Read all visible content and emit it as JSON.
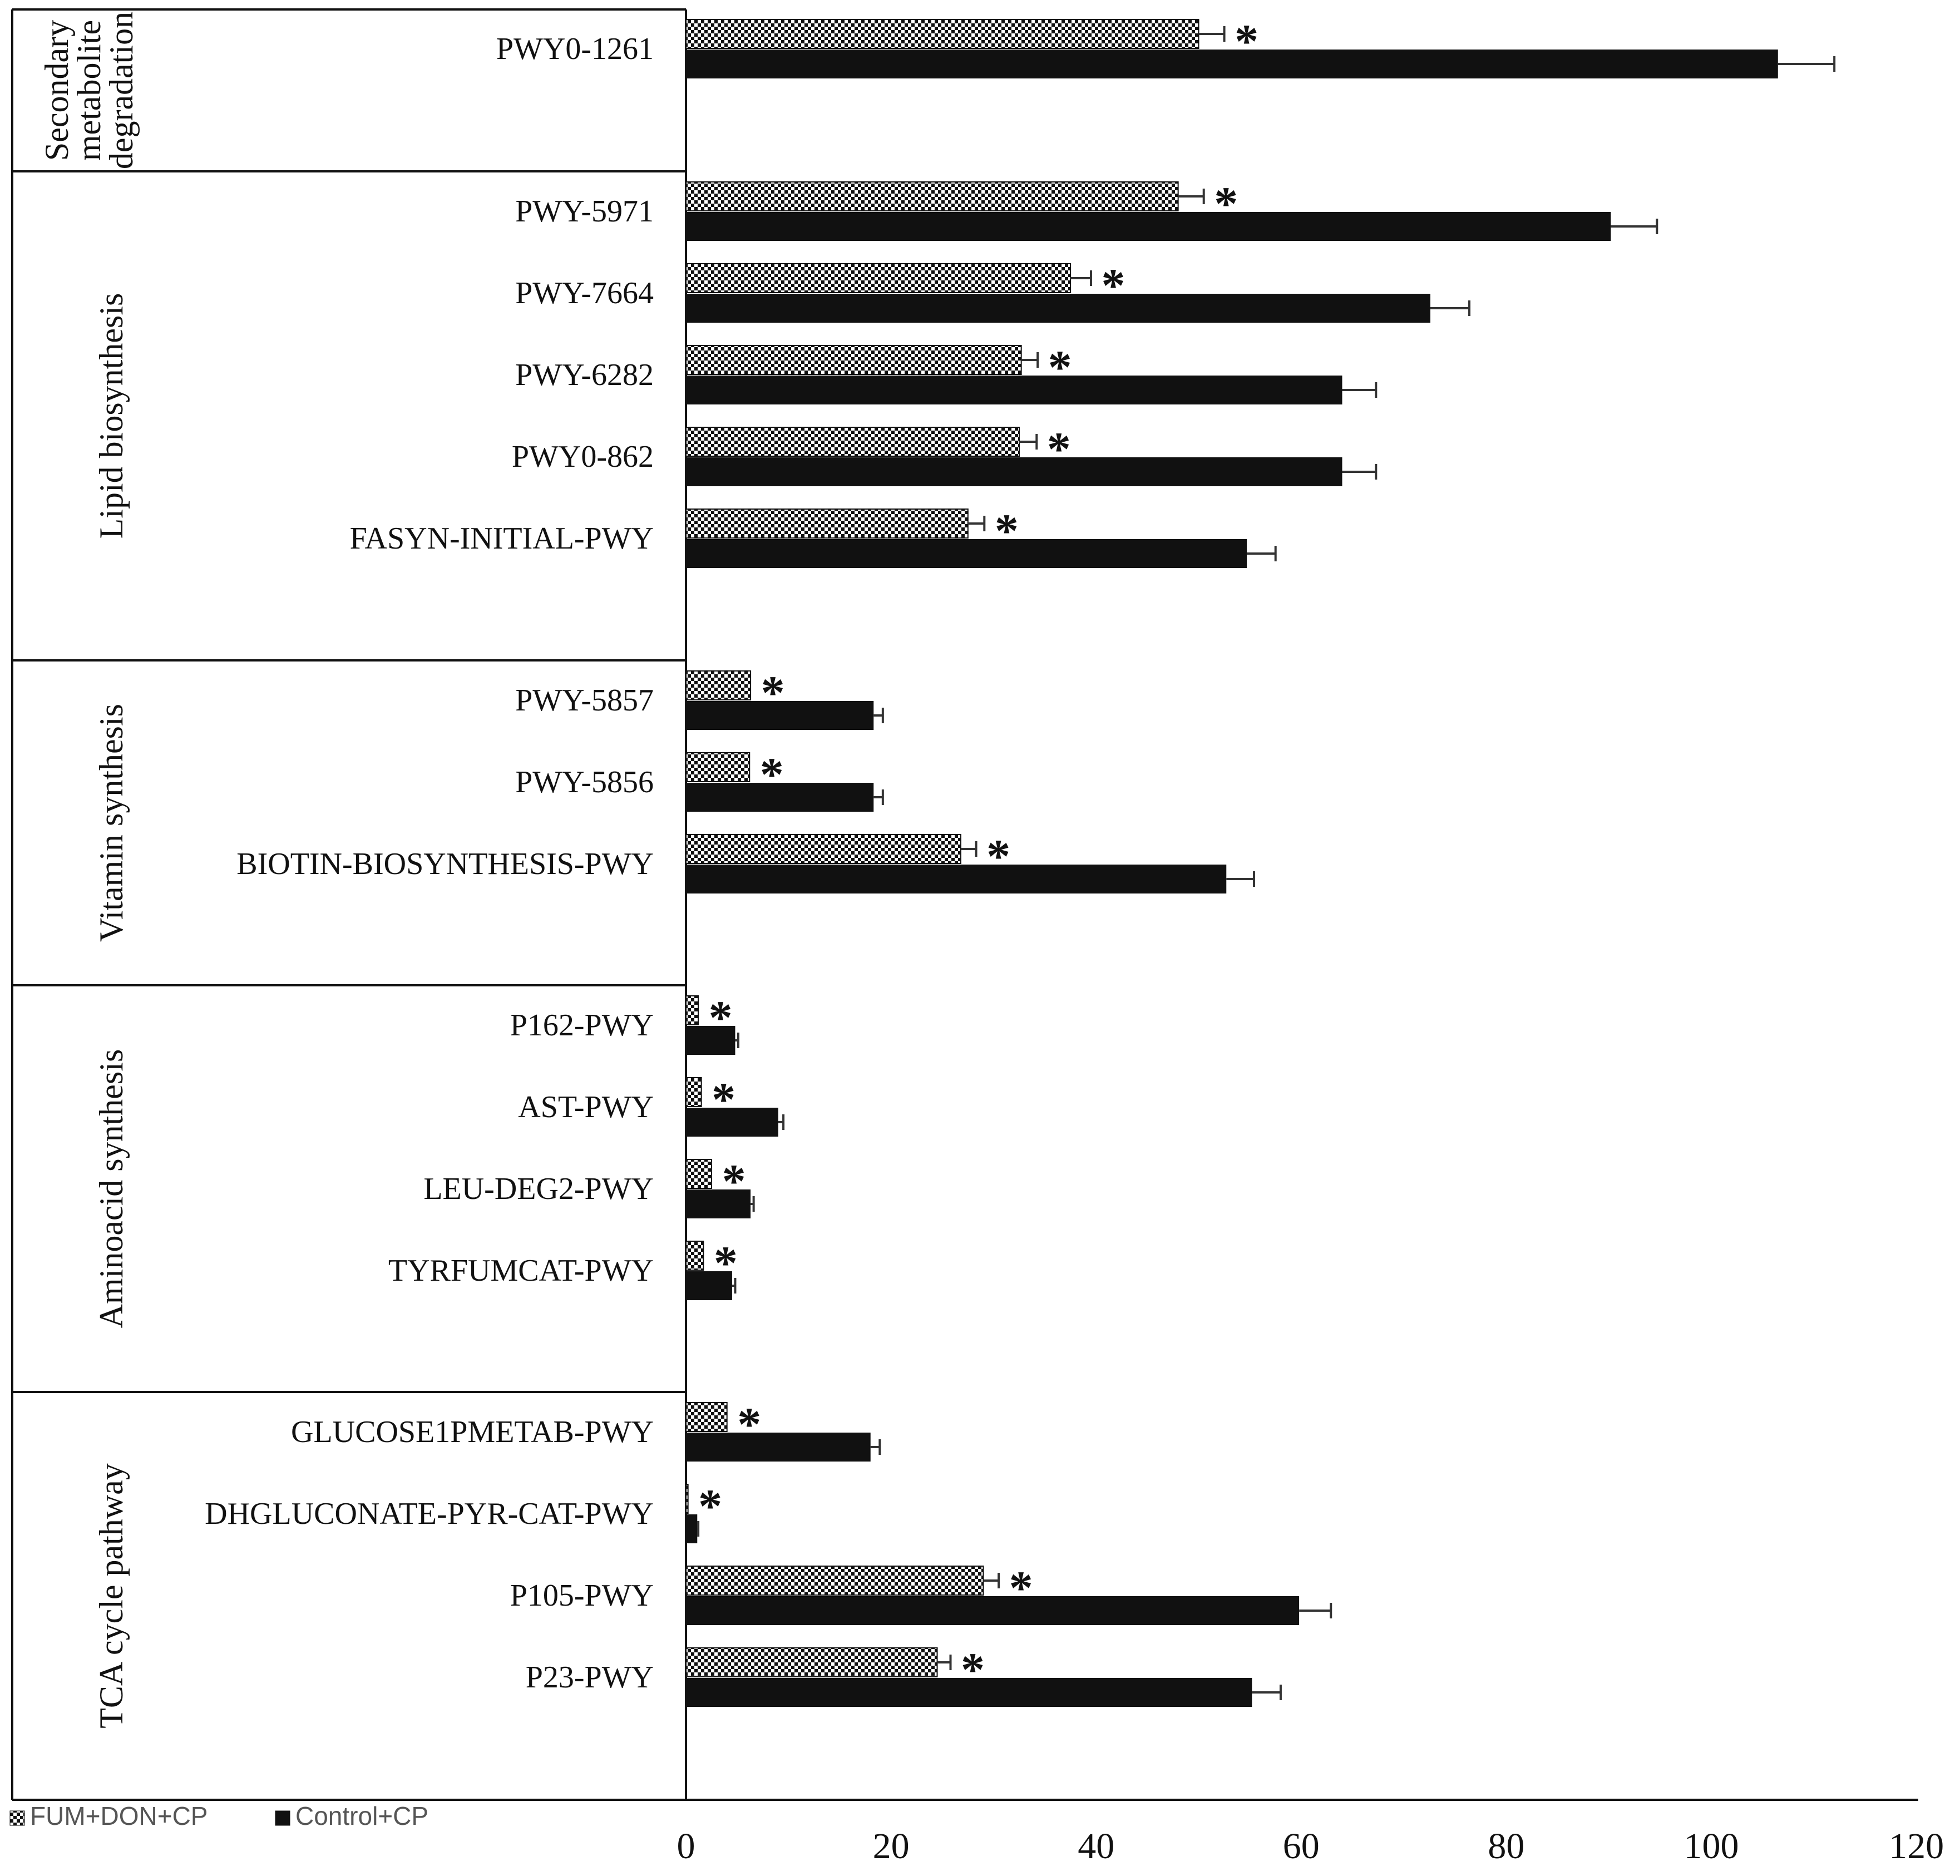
{
  "chart_data": {
    "type": "bar",
    "orientation": "horizontal",
    "title": "",
    "xlabel": "",
    "ylabel": "",
    "xlim": [
      0,
      120
    ],
    "x_ticks": [
      "0",
      "20",
      "40",
      "60",
      "80",
      "100",
      "120"
    ],
    "grid": false,
    "legend_position": "bottom-left",
    "series": [
      {
        "name": "FUM+DON+CP",
        "pattern": "checkered",
        "color": "#111111"
      },
      {
        "name": "Control+CP",
        "pattern": "solid",
        "color": "#111111"
      }
    ],
    "significance_marker": "*",
    "groups": [
      {
        "label_lines": [
          "Secondary",
          "metabolite",
          "degradation"
        ],
        "pathways": [
          {
            "name": "PWY0-1261",
            "FUM+DON+CP": 50,
            "FUM+DON+CP_err": 2.5,
            "Control+CP": 106.5,
            "Control+CP_err": 5.5,
            "significant": true
          }
        ]
      },
      {
        "label_lines": [
          "Lipid biosynthesis"
        ],
        "pathways": [
          {
            "name": "PWY-5971",
            "FUM+DON+CP": 48,
            "FUM+DON+CP_err": 2.5,
            "Control+CP": 90.2,
            "Control+CP_err": 4.5,
            "significant": true
          },
          {
            "name": "PWY-7664",
            "FUM+DON+CP": 37.5,
            "FUM+DON+CP_err": 2,
            "Control+CP": 72.6,
            "Control+CP_err": 3.8,
            "significant": true
          },
          {
            "name": "PWY-6282",
            "FUM+DON+CP": 32.7,
            "FUM+DON+CP_err": 1.6,
            "Control+CP": 64,
            "Control+CP_err": 3.3,
            "significant": true
          },
          {
            "name": "PWY0-862",
            "FUM+DON+CP": 32.5,
            "FUM+DON+CP_err": 1.7,
            "Control+CP": 64,
            "Control+CP_err": 3.3,
            "significant": true
          },
          {
            "name": "FASYN-INITIAL-PWY",
            "FUM+DON+CP": 27.5,
            "FUM+DON+CP_err": 1.6,
            "Control+CP": 54.7,
            "Control+CP_err": 2.8,
            "significant": true
          }
        ]
      },
      {
        "label_lines": [
          "Vitamin synthesis"
        ],
        "pathways": [
          {
            "name": "PWY-5857",
            "FUM+DON+CP": 6.3,
            "FUM+DON+CP_err": 0,
            "Control+CP": 18.3,
            "Control+CP_err": 0.9,
            "significant": true
          },
          {
            "name": "PWY-5856",
            "FUM+DON+CP": 6.2,
            "FUM+DON+CP_err": 0,
            "Control+CP": 18.3,
            "Control+CP_err": 0.9,
            "significant": true
          },
          {
            "name": "BIOTIN-BIOSYNTHESIS-PWY",
            "FUM+DON+CP": 26.8,
            "FUM+DON+CP_err": 1.5,
            "Control+CP": 52.7,
            "Control+CP_err": 2.7,
            "significant": true
          }
        ]
      },
      {
        "label_lines": [
          "Aminoacid synthesis"
        ],
        "pathways": [
          {
            "name": "P162-PWY",
            "FUM+DON+CP": 1.2,
            "FUM+DON+CP_err": 0,
            "Control+CP": 4.8,
            "Control+CP_err": 0.3,
            "significant": true
          },
          {
            "name": "AST-PWY",
            "FUM+DON+CP": 1.5,
            "FUM+DON+CP_err": 0,
            "Control+CP": 9,
            "Control+CP_err": 0.5,
            "significant": true
          },
          {
            "name": "LEU-DEG2-PWY",
            "FUM+DON+CP": 2.5,
            "FUM+DON+CP_err": 0,
            "Control+CP": 6.3,
            "Control+CP_err": 0.3,
            "significant": true
          },
          {
            "name": "TYRFUMCAT-PWY",
            "FUM+DON+CP": 1.7,
            "FUM+DON+CP_err": 0,
            "Control+CP": 4.5,
            "Control+CP_err": 0.3,
            "significant": true
          }
        ]
      },
      {
        "label_lines": [
          "TCA cycle pathway"
        ],
        "pathways": [
          {
            "name": "GLUCOSE1PMETAB-PWY",
            "FUM+DON+CP": 4,
            "FUM+DON+CP_err": 0,
            "Control+CP": 18,
            "Control+CP_err": 0.9,
            "significant": true
          },
          {
            "name": "DHGLUCONATE-PYR-CAT-PWY",
            "FUM+DON+CP": 0.2,
            "FUM+DON+CP_err": 0,
            "Control+CP": 1.1,
            "Control+CP_err": 0.1,
            "significant": true
          },
          {
            "name": "P105-PWY",
            "FUM+DON+CP": 29,
            "FUM+DON+CP_err": 1.5,
            "Control+CP": 59.8,
            "Control+CP_err": 3.1,
            "significant": true
          },
          {
            "name": "P23-PWY",
            "FUM+DON+CP": 24.5,
            "FUM+DON+CP_err": 1.3,
            "Control+CP": 55.2,
            "Control+CP_err": 2.8,
            "significant": true
          }
        ]
      }
    ]
  }
}
